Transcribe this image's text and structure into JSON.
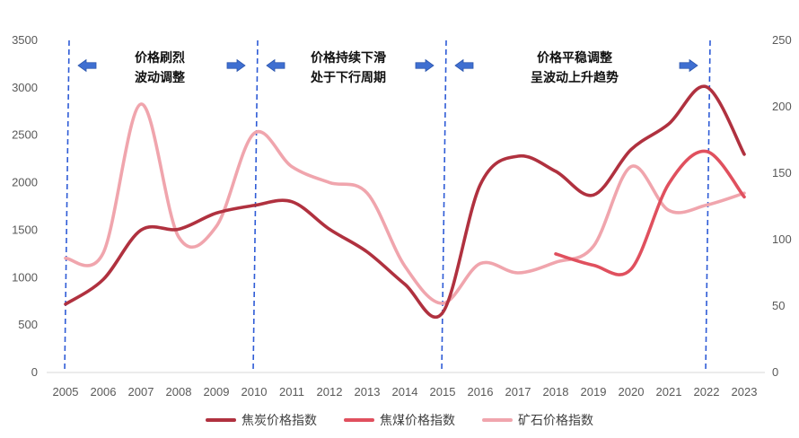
{
  "chart_data": {
    "type": "line",
    "title": "",
    "x": [
      "2005",
      "2006",
      "2007",
      "2008",
      "2009",
      "2010",
      "2011",
      "2012",
      "2013",
      "2014",
      "2015",
      "2016",
      "2017",
      "2018",
      "2019",
      "2020",
      "2021",
      "2022",
      "2023"
    ],
    "y_left": {
      "min": 0,
      "max": 3500,
      "ticks": [
        0,
        500,
        1000,
        1500,
        2000,
        2500,
        3000,
        3500
      ]
    },
    "y_right": {
      "min": 0,
      "max": 250,
      "ticks": [
        0,
        50,
        100,
        150,
        200,
        250
      ]
    },
    "series": [
      {
        "name": "焦炭价格指数",
        "axis": "left",
        "color": "#b0313f",
        "values": [
          720,
          980,
          1500,
          1510,
          1680,
          1760,
          1800,
          1510,
          1270,
          930,
          630,
          1980,
          2280,
          2120,
          1870,
          2350,
          2620,
          3010,
          2300
        ]
      },
      {
        "name": "焦煤价格指数",
        "axis": "left",
        "color": "#e0505e",
        "values": [
          null,
          null,
          null,
          null,
          null,
          null,
          null,
          null,
          null,
          null,
          null,
          null,
          null,
          1250,
          1130,
          1090,
          1990,
          2330,
          1850
        ]
      },
      {
        "name": "矿石价格指数",
        "axis": "right",
        "color": "#f0a5ad",
        "values": [
          86,
          90,
          202,
          102,
          110,
          180,
          155,
          143,
          135,
          80,
          52,
          82,
          75,
          83,
          95,
          155,
          122,
          126,
          135
        ]
      }
    ],
    "vlines": [
      "2005",
      "2010",
      "2015",
      "2022"
    ],
    "annotations": [
      {
        "line1": "价格刷烈",
        "line2": "波动调整",
        "from": "2005",
        "to": "2010"
      },
      {
        "line1": "价格持续下滑",
        "line2": "处于下行周期",
        "from": "2010",
        "to": "2015"
      },
      {
        "line1": "价格平稳调整",
        "line2": "呈波动上升趋势",
        "from": "2015",
        "to": "2022"
      }
    ],
    "legend_position": "bottom",
    "grid": false
  }
}
